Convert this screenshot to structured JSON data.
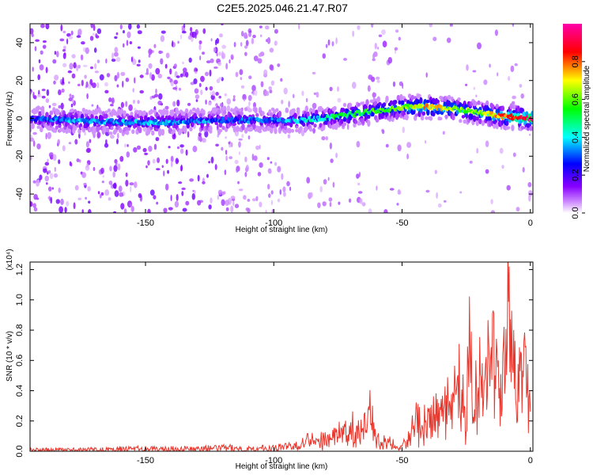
{
  "title": "C2E5.2025.046.21.47.R07",
  "chart_data": [
    {
      "type": "heatmap",
      "xlabel": "Height of straight line (km)",
      "ylabel": "Frequency (Hz)",
      "xlim": [
        -195,
        1
      ],
      "ylim": [
        -50,
        50
      ],
      "xticks": [
        -150,
        -100,
        -50,
        0
      ],
      "yticks": [
        -40,
        -20,
        0,
        20,
        40
      ],
      "colorbar": {
        "label": "Normalized spectral amplitude",
        "range": [
          0,
          1
        ],
        "ticks": [
          "0.0",
          "0.2",
          "0.4",
          "0.6",
          "0.8"
        ],
        "colormap": [
          "#ffffff",
          "#8800ff",
          "#0000ff",
          "#00ffff",
          "#00ff00",
          "#ffff00",
          "#ff0000",
          "#ff00aa"
        ]
      },
      "ridge": {
        "height_km": [
          -195,
          -180,
          -160,
          -140,
          -120,
          -100,
          -90,
          -80,
          -70,
          -60,
          -50,
          -40,
          -30,
          -20,
          -10,
          0
        ],
        "frequency_hz": [
          0,
          -1,
          -2,
          -2,
          -1,
          -1,
          -1,
          0,
          2,
          4,
          6,
          6,
          5,
          3,
          1,
          0
        ],
        "amplitude": [
          0.25,
          0.35,
          0.35,
          0.35,
          0.3,
          0.3,
          0.4,
          0.45,
          0.5,
          0.55,
          0.6,
          0.75,
          0.65,
          0.6,
          0.8,
          0.95
        ]
      }
    },
    {
      "type": "line",
      "xlabel": "Height of straight line (km)",
      "ylabel": "SNR (10 * v/v)",
      "multiplier": "(x10⁴)",
      "xlim": [
        -195,
        1
      ],
      "ylim": [
        0,
        1.25
      ],
      "xticks": [
        -150,
        -100,
        -50,
        0
      ],
      "yticks": [
        "0.0",
        "0.2",
        "0.4",
        "0.6",
        "0.8",
        "1.0",
        "1.2"
      ],
      "series": [
        {
          "color": "#e8382e",
          "x": [
            -195,
            -180,
            -160,
            -150,
            -140,
            -130,
            -120,
            -110,
            -100,
            -95,
            -90,
            -85,
            -80,
            -75,
            -70,
            -68,
            -65,
            -62,
            -60,
            -58,
            -55,
            -52,
            -50,
            -48,
            -45,
            -43,
            -40,
            -38,
            -35,
            -32,
            -30,
            -28,
            -25,
            -24,
            -22,
            -20,
            -18,
            -15,
            -12,
            -10,
            -8,
            -7,
            -5,
            -3,
            -2,
            -1,
            0
          ],
          "y": [
            0.01,
            0.01,
            0.02,
            0.02,
            0.02,
            0.02,
            0.03,
            0.02,
            0.03,
            0.04,
            0.08,
            0.12,
            0.1,
            0.14,
            0.22,
            0.17,
            0.2,
            0.4,
            0.1,
            0.08,
            0.1,
            0.05,
            0.03,
            0.1,
            0.3,
            0.25,
            0.35,
            0.3,
            0.45,
            0.5,
            0.4,
            0.6,
            0.3,
            0.8,
            0.45,
            0.6,
            0.5,
            0.95,
            0.4,
            0.7,
            1.22,
            0.65,
            0.55,
            0.7,
            0.95,
            0.6,
            0.3
          ]
        }
      ]
    }
  ]
}
